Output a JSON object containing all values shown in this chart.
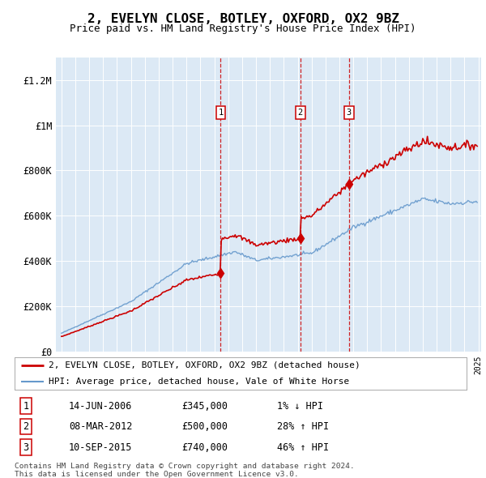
{
  "title": "2, EVELYN CLOSE, BOTLEY, OXFORD, OX2 9BZ",
  "subtitle": "Price paid vs. HM Land Registry's House Price Index (HPI)",
  "plot_bg_color": "#dce9f5",
  "ylim": [
    0,
    1300000
  ],
  "yticks": [
    0,
    200000,
    400000,
    600000,
    800000,
    1000000,
    1200000
  ],
  "ytick_labels": [
    "£0",
    "£200K",
    "£400K",
    "£600K",
    "£800K",
    "£1M",
    "£1.2M"
  ],
  "transactions": [
    {
      "label": "1",
      "date": "14-JUN-2006",
      "price": 345000,
      "pct": "1%",
      "dir": "↓"
    },
    {
      "label": "2",
      "date": "08-MAR-2012",
      "price": 500000,
      "pct": "28%",
      "dir": "↑"
    },
    {
      "label": "3",
      "date": "10-SEP-2015",
      "price": 740000,
      "pct": "46%",
      "dir": "↑"
    }
  ],
  "transaction_years": [
    2006.46,
    2012.19,
    2015.69
  ],
  "transaction_prices": [
    345000,
    500000,
    740000
  ],
  "legend_entries": [
    {
      "label": "2, EVELYN CLOSE, BOTLEY, OXFORD, OX2 9BZ (detached house)",
      "color": "#cc0000",
      "lw": 2
    },
    {
      "label": "HPI: Average price, detached house, Vale of White Horse",
      "color": "#6699cc",
      "lw": 1.5
    }
  ],
  "footer": "Contains HM Land Registry data © Crown copyright and database right 2024.\nThis data is licensed under the Open Government Licence v3.0.",
  "red_line_color": "#cc0000",
  "blue_line_color": "#6699cc"
}
